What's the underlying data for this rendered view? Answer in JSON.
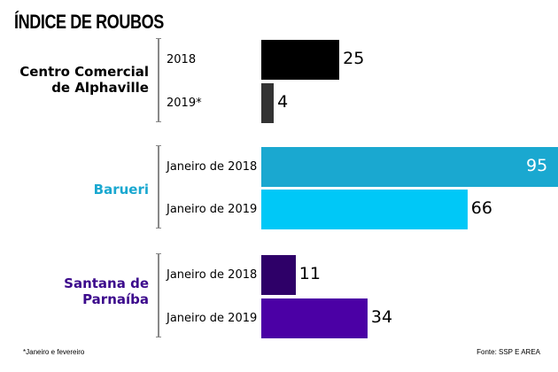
{
  "chart_data": {
    "type": "bar",
    "orientation": "horizontal",
    "title": "ÍNDICE DE ROUBOS",
    "groups": [
      {
        "name": "Centro Comercial de Alphaville",
        "color": "#000000",
        "categories": [
          "2018",
          "2019*"
        ],
        "values": [
          25,
          4
        ],
        "colors": [
          "#000000",
          "#333333"
        ]
      },
      {
        "name": "Barueri",
        "color": "#1aa8d0",
        "categories": [
          "Janeiro de 2018",
          "Janeiro de 2019"
        ],
        "values": [
          95,
          66
        ],
        "colors": [
          "#1aa8d0",
          "#00c8f7"
        ]
      },
      {
        "name": "Santana de Parnaíba",
        "color": "#3c0a8c",
        "categories": [
          "Janeiro de 2018",
          "Janeiro de 2019"
        ],
        "values": [
          11,
          34
        ],
        "colors": [
          "#2e0068",
          "#4b00a5"
        ]
      }
    ],
    "xlim": [
      0,
      95
    ],
    "grid": false
  },
  "footnote": "*Janeiro e fevereiro",
  "source": "Fonte: SSP E AREA"
}
